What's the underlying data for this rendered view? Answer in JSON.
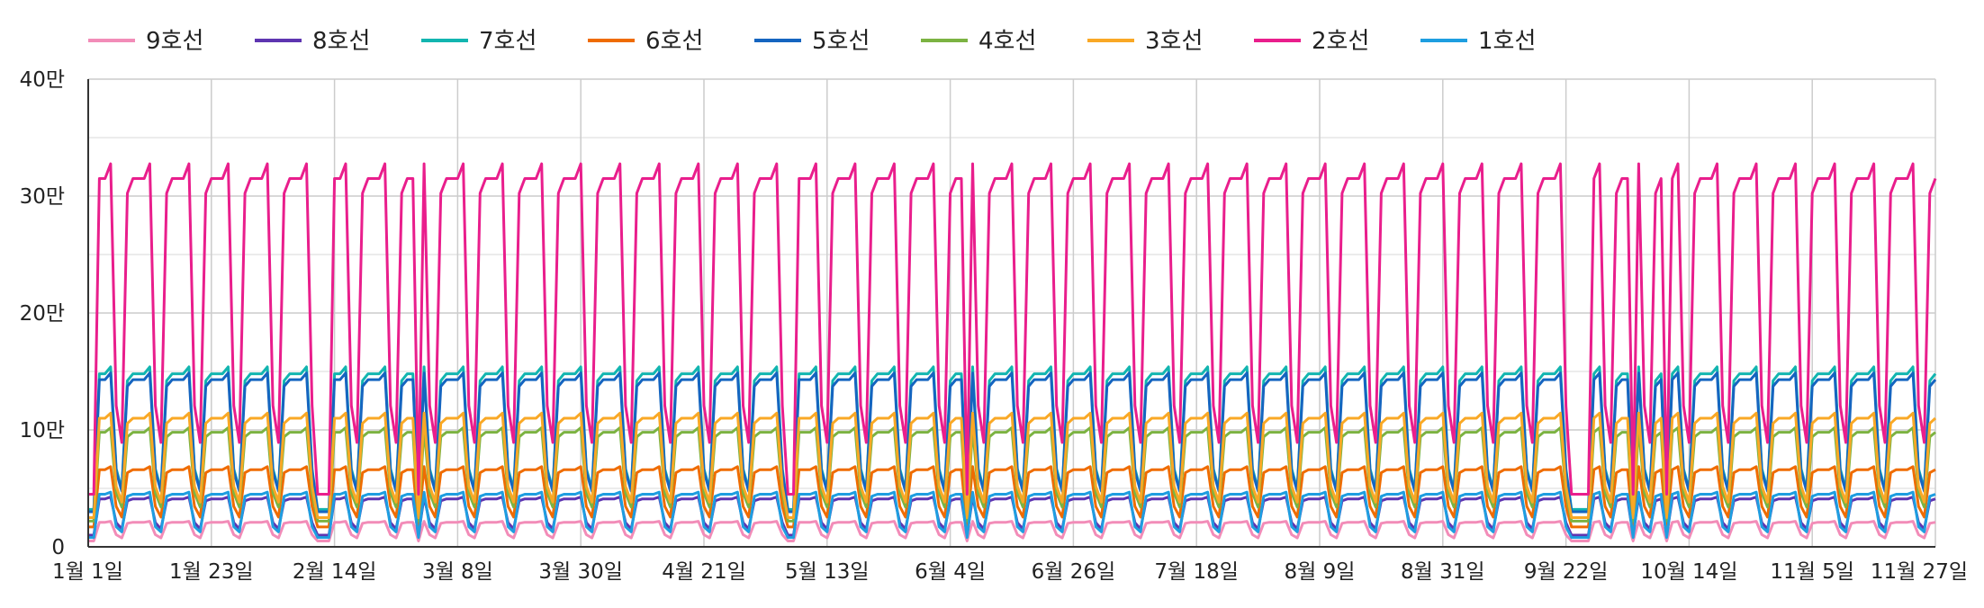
{
  "chart_data": {
    "type": "line",
    "title": "",
    "xlabel": "",
    "ylabel": "",
    "ylim": [
      0,
      400000
    ],
    "yticks": [
      0,
      100000,
      200000,
      300000,
      400000
    ],
    "ytick_labels": [
      "0",
      "10만",
      "20만",
      "30만",
      "40만"
    ],
    "x_range_days": [
      0,
      330
    ],
    "xticks": [
      0,
      22,
      44,
      66,
      88,
      110,
      132,
      154,
      176,
      198,
      220,
      242,
      264,
      286,
      308,
      330
    ],
    "xtick_labels": [
      "1월 1일",
      "1월 23일",
      "2월 14일",
      "3월 8일",
      "3월 30일",
      "4월 21일",
      "5월 13일",
      "6월 4일",
      "6월 26일",
      "7월 18일",
      "8월 9일",
      "8월 31일",
      "9월 22일",
      "10월 14일",
      "11월 5일",
      "11월 27일"
    ],
    "grid": true,
    "legend_position": "top",
    "series": [
      {
        "name": "9호선",
        "color": "#f28cb8",
        "weekday": 21000,
        "weekend": 9000,
        "holiday": 5000
      },
      {
        "name": "8호선",
        "color": "#5e35b1",
        "weekday": 41000,
        "weekend": 18000,
        "holiday": 10000
      },
      {
        "name": "7호선",
        "color": "#12b5b0",
        "weekday": 148000,
        "weekend": 58000,
        "holiday": 32000
      },
      {
        "name": "6호선",
        "color": "#ef6c00",
        "weekday": 66000,
        "weekend": 30000,
        "holiday": 17000
      },
      {
        "name": "5호선",
        "color": "#1565c0",
        "weekday": 143000,
        "weekend": 56000,
        "holiday": 30000
      },
      {
        "name": "4호선",
        "color": "#7cb342",
        "weekday": 98000,
        "weekend": 40000,
        "holiday": 22000
      },
      {
        "name": "3호선",
        "color": "#f9a825",
        "weekday": 110000,
        "weekend": 45000,
        "holiday": 25000
      },
      {
        "name": "2호선",
        "color": "#e91e8c",
        "weekday": 315000,
        "weekend": 105000,
        "holiday": 45000
      },
      {
        "name": "1호선",
        "color": "#1e9ee0",
        "weekday": 45000,
        "weekend": 15000,
        "holiday": 8000
      }
    ]
  }
}
